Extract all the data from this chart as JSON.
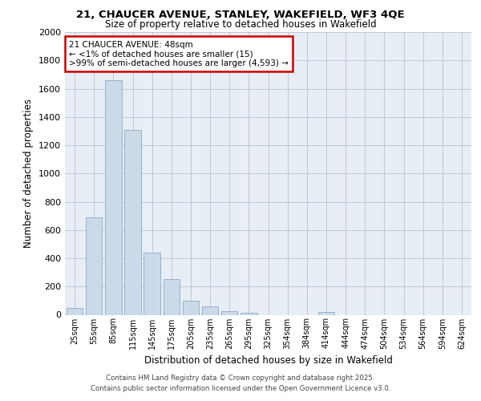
{
  "title1": "21, CHAUCER AVENUE, STANLEY, WAKEFIELD, WF3 4QE",
  "title2": "Size of property relative to detached houses in Wakefield",
  "xlabel": "Distribution of detached houses by size in Wakefield",
  "ylabel": "Number of detached properties",
  "categories": [
    "25sqm",
    "55sqm",
    "85sqm",
    "115sqm",
    "145sqm",
    "175sqm",
    "205sqm",
    "235sqm",
    "265sqm",
    "295sqm",
    "325sqm",
    "354sqm",
    "384sqm",
    "414sqm",
    "444sqm",
    "474sqm",
    "504sqm",
    "534sqm",
    "564sqm",
    "594sqm",
    "624sqm"
  ],
  "values": [
    50,
    690,
    1660,
    1310,
    440,
    255,
    100,
    60,
    25,
    15,
    0,
    0,
    0,
    20,
    0,
    0,
    0,
    0,
    0,
    0,
    0
  ],
  "bar_color": "#ccd9e8",
  "bar_edge_color": "#7a9fc0",
  "annotation_box_color": "#ffffff",
  "annotation_border_color": "#cc0000",
  "annotation_line1": "21 CHAUCER AVENUE: 48sqm",
  "annotation_line2": "← <1% of detached houses are smaller (15)",
  "annotation_line3": ">99% of semi-detached houses are larger (4,593) →",
  "ylim": [
    0,
    2000
  ],
  "yticks": [
    0,
    200,
    400,
    600,
    800,
    1000,
    1200,
    1400,
    1600,
    1800,
    2000
  ],
  "bg_color": "#e8eef5",
  "footer1": "Contains HM Land Registry data © Crown copyright and database right 2025.",
  "footer2": "Contains public sector information licensed under the Open Government Licence v3.0."
}
